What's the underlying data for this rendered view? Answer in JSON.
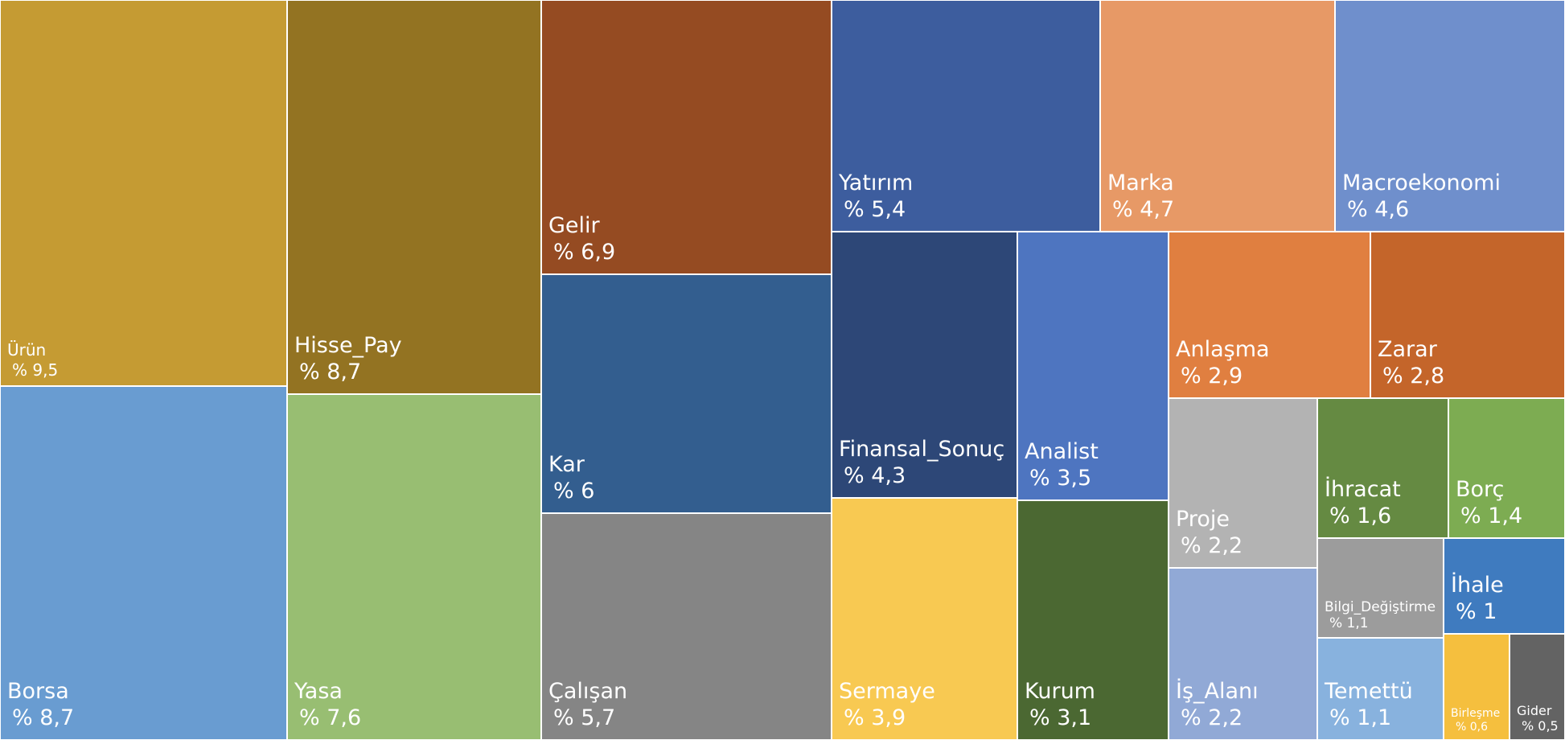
{
  "chart_data": {
    "type": "treemap",
    "title": "",
    "unit": "%",
    "items": [
      {
        "name": "Ürün",
        "label": "Ürün",
        "value": 9.5,
        "value_label": "% 9,5",
        "color": "#C59B33"
      },
      {
        "name": "Borsa",
        "label": "Borsa",
        "value": 8.7,
        "value_label": "% 8,7",
        "color": "#699CD1"
      },
      {
        "name": "Hisse_Pay",
        "label": "Hisse_Pay",
        "value": 8.7,
        "value_label": "% 8,7",
        "color": "#937322"
      },
      {
        "name": "Yasa",
        "label": "Yasa",
        "value": 7.6,
        "value_label": "% 7,6",
        "color": "#98BE72"
      },
      {
        "name": "Gelir",
        "label": "Gelir",
        "value": 6.9,
        "value_label": "% 6,9",
        "color": "#954B22"
      },
      {
        "name": "Kar",
        "label": "Kar",
        "value": 6.0,
        "value_label": "% 6",
        "color": "#335E8F"
      },
      {
        "name": "Çalışan",
        "label": "Çalışan",
        "value": 5.7,
        "value_label": "% 5,7",
        "color": "#858585"
      },
      {
        "name": "Yatırım",
        "label": "Yatırım",
        "value": 5.4,
        "value_label": "% 5,4",
        "color": "#3D5D9E"
      },
      {
        "name": "Marka",
        "label": "Marka",
        "value": 4.7,
        "value_label": "% 4,7",
        "color": "#E79966"
      },
      {
        "name": "Macroekonomi",
        "label": "Macroekonomi",
        "value": 4.6,
        "value_label": "% 4,6",
        "color": "#6F8FCC"
      },
      {
        "name": "Finansal_Sonuç",
        "label": "Finansal_Sonuç",
        "value": 4.3,
        "value_label": "% 4,3",
        "color": "#2D4777"
      },
      {
        "name": "Sermaye",
        "label": "Sermaye",
        "value": 3.9,
        "value_label": "% 3,9",
        "color": "#F8C952"
      },
      {
        "name": "Analist",
        "label": "Analist",
        "value": 3.5,
        "value_label": "% 3,5",
        "color": "#4E75C0"
      },
      {
        "name": "Kurum",
        "label": "Kurum",
        "value": 3.1,
        "value_label": "% 3,1",
        "color": "#4B6832"
      },
      {
        "name": "Anlaşma",
        "label": "Anlaşma",
        "value": 2.9,
        "value_label": "% 2,9",
        "color": "#E07F40"
      },
      {
        "name": "Zarar",
        "label": "Zarar",
        "value": 2.8,
        "value_label": "% 2,8",
        "color": "#C4652A"
      },
      {
        "name": "Proje",
        "label": "Proje",
        "value": 2.2,
        "value_label": "% 2,2",
        "color": "#B3B3B3"
      },
      {
        "name": "İş_Alanı",
        "label": "İş_Alanı",
        "value": 2.2,
        "value_label": "% 2,2",
        "color": "#91A9D6"
      },
      {
        "name": "İhracat",
        "label": "İhracat",
        "value": 1.6,
        "value_label": "% 1,6",
        "color": "#658A42"
      },
      {
        "name": "Borç",
        "label": "Borç",
        "value": 1.4,
        "value_label": "% 1,4",
        "color": "#7DAC52"
      },
      {
        "name": "Bilgi_Değiştirme",
        "label": "Bilgi_Değiştirme",
        "value": 1.1,
        "value_label": "% 1,1",
        "color": "#9C9C9C"
      },
      {
        "name": "İhale",
        "label": "İhale",
        "value": 1.0,
        "value_label": "% 1",
        "color": "#3F7BBF"
      },
      {
        "name": "Temettü",
        "label": "Temettü",
        "value": 1.1,
        "value_label": "% 1,1",
        "color": "#88B2DE"
      },
      {
        "name": "Birleşme",
        "label": "Birleşme",
        "value": 0.6,
        "value_label": "% 0,6",
        "color": "#F5BF3E"
      },
      {
        "name": "Gider",
        "label": "Gider",
        "value": 0.5,
        "value_label": "% 0,5",
        "color": "#636363"
      }
    ]
  }
}
